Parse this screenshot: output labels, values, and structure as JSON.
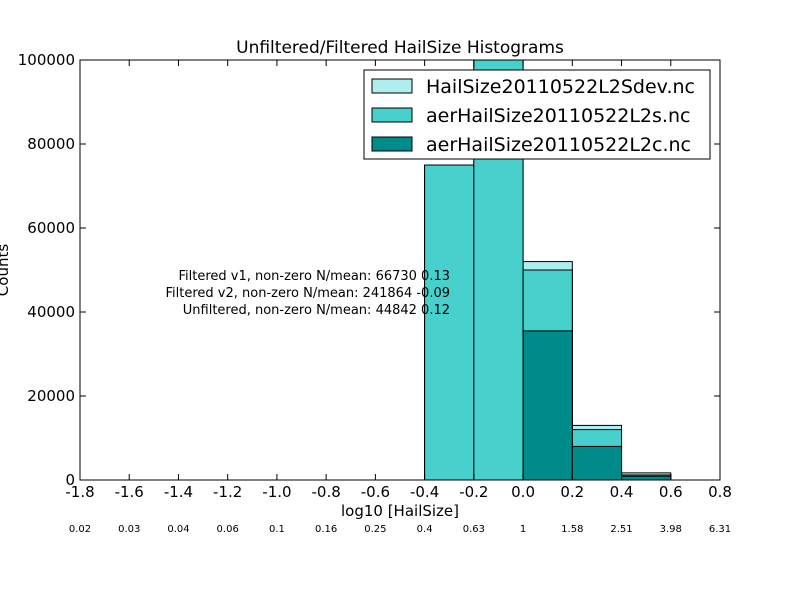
{
  "chart_data": {
    "type": "bar",
    "title": "Unfiltered/Filtered HailSize Histograms",
    "xlabel": "log10 [HailSize]",
    "ylabel": "Counts",
    "xlim": [
      -1.8,
      0.8
    ],
    "ylim": [
      0,
      100000
    ],
    "grid": false,
    "legend_position": "top-right",
    "x_ticks": [
      "-1.8",
      "-1.6",
      "-1.4",
      "-1.2",
      "-1.0",
      "-0.8",
      "-0.6",
      "-0.4",
      "-0.2",
      "0.0",
      "0.2",
      "0.4",
      "0.6",
      "0.8"
    ],
    "y_ticks": [
      "0",
      "20000",
      "40000",
      "60000",
      "80000",
      "100000"
    ],
    "secondary_x_ticks": [
      "0.02",
      "0.03",
      "0.04",
      "0.06",
      "0.1",
      "0.16",
      "0.25",
      "0.4",
      "0.63",
      "1",
      "1.58",
      "2.51",
      "3.98",
      "6.31"
    ],
    "bin_edges": [
      -0.4,
      -0.2,
      0.0,
      0.2,
      0.4,
      0.6
    ],
    "series": [
      {
        "name": "HailSize20110522L2Sdev.nc",
        "color": "#afeeee",
        "values": [
          75000,
          100000,
          52000,
          13000,
          1700
        ]
      },
      {
        "name": "aerHailSize20110522L2s.nc",
        "color": "#48d1cc",
        "values": [
          75000,
          100000,
          50000,
          12000,
          1200
        ]
      },
      {
        "name": "aerHailSize20110522L2c.nc",
        "color": "#008b8b",
        "values": [
          0,
          0,
          35500,
          8000,
          900
        ]
      }
    ],
    "annotations": [
      "Filtered v1, non-zero N/mean: 66730 0.13",
      "Filtered v2, non-zero N/mean: 241864 -0.09",
      "Unfiltered, non-zero N/mean: 44842 0.12"
    ]
  }
}
